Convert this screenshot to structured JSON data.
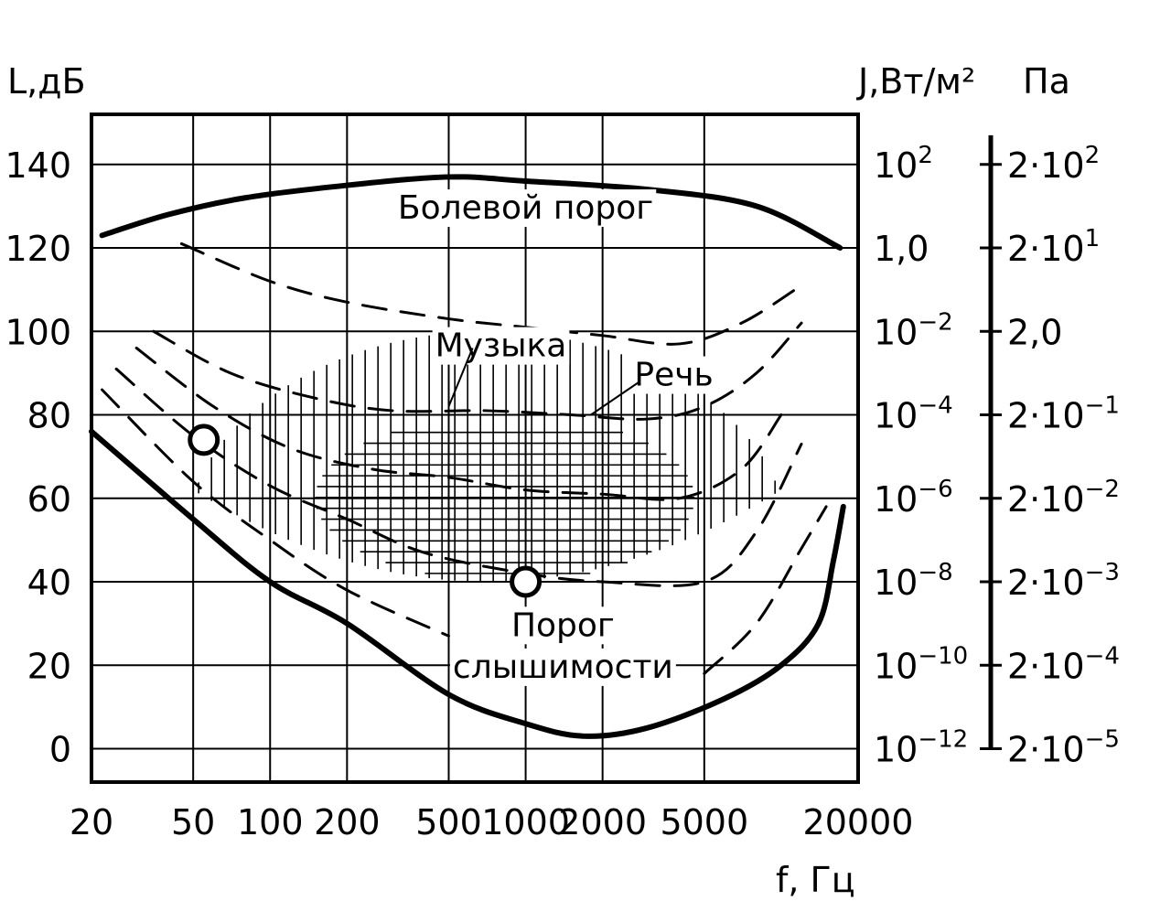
{
  "chart_data": {
    "type": "line",
    "title": "",
    "xlabel": "f, Гц",
    "ylabel": "L,дБ",
    "x_scale": "log",
    "xlim": [
      20,
      20000
    ],
    "ylim": [
      -8,
      152
    ],
    "x_ticks": [
      "20",
      "50",
      "100",
      "200",
      "500",
      "1000",
      "2000",
      "5000",
      "20000"
    ],
    "x_tick_values": [
      20,
      50,
      100,
      200,
      500,
      1000,
      2000,
      5000,
      20000
    ],
    "y_ticks": [
      "0",
      "20",
      "40",
      "60",
      "80",
      "100",
      "120",
      "140"
    ],
    "y_tick_values": [
      0,
      20,
      40,
      60,
      80,
      100,
      120,
      140
    ],
    "right_axis_1": {
      "label": "J,Вт/м²",
      "ticks": [
        {
          "at_db": 0,
          "base": "10",
          "exp": "−12"
        },
        {
          "at_db": 20,
          "base": "10",
          "exp": "−10"
        },
        {
          "at_db": 40,
          "base": "10",
          "exp": "−8"
        },
        {
          "at_db": 60,
          "base": "10",
          "exp": "−6"
        },
        {
          "at_db": 80,
          "base": "10",
          "exp": "−4"
        },
        {
          "at_db": 100,
          "base": "10",
          "exp": "−2"
        },
        {
          "at_db": 120,
          "base": "1,0",
          "exp": ""
        },
        {
          "at_db": 140,
          "base": "10",
          "exp": "2"
        }
      ]
    },
    "right_axis_2": {
      "label": "Па",
      "ticks": [
        {
          "at_db": 0,
          "base": "2·10",
          "exp": "−5"
        },
        {
          "at_db": 20,
          "base": "2·10",
          "exp": "−4"
        },
        {
          "at_db": 40,
          "base": "2·10",
          "exp": "−3"
        },
        {
          "at_db": 60,
          "base": "2·10",
          "exp": "−2"
        },
        {
          "at_db": 80,
          "base": "2·10",
          "exp": "−1"
        },
        {
          "at_db": 100,
          "base": "2,0",
          "exp": ""
        },
        {
          "at_db": 120,
          "base": "2·10",
          "exp": "1"
        },
        {
          "at_db": 140,
          "base": "2·10",
          "exp": "2"
        }
      ]
    },
    "series": [
      {
        "style": "thick",
        "x": [
          22,
          40,
          80,
          200,
          500,
          1000,
          3000,
          8000,
          17000
        ],
        "y": [
          123,
          128,
          132,
          135,
          137,
          136,
          134,
          130,
          120
        ]
      },
      {
        "style": "thick",
        "x": [
          20,
          50,
          100,
          200,
          500,
          1000,
          1700,
          3000,
          6000,
          10000,
          14000,
          16000,
          17500
        ],
        "y": [
          76,
          55,
          40,
          30,
          13,
          6,
          3,
          5,
          12,
          20,
          30,
          45,
          58
        ]
      },
      {
        "style": "dashed",
        "x": [
          45,
          100,
          200,
          500,
          1000,
          2000,
          4000,
          7000,
          12000
        ],
        "y": [
          121,
          112,
          107,
          103,
          101,
          99,
          97,
          102,
          111
        ]
      },
      {
        "style": "dashed",
        "x": [
          35,
          70,
          150,
          300,
          700,
          1500,
          3000,
          5000,
          8000,
          12000
        ],
        "y": [
          100,
          90,
          84,
          81,
          81,
          80,
          79,
          82,
          90,
          102
        ]
      },
      {
        "style": "dashed",
        "x": [
          30,
          60,
          120,
          250,
          500,
          1000,
          2000,
          4000,
          7000,
          10000
        ],
        "y": [
          96,
          82,
          72,
          67,
          65,
          62,
          61,
          60,
          67,
          80
        ]
      },
      {
        "style": "dashed",
        "x": [
          25,
          50,
          100,
          200,
          400,
          1000,
          2000,
          5000,
          8000,
          12000
        ],
        "y": [
          91,
          75,
          63,
          55,
          47,
          42,
          40,
          40,
          52,
          73
        ]
      },
      {
        "style": "dashed",
        "x": [
          22,
          50,
          100,
          200,
          500
        ],
        "y": [
          86,
          64,
          50,
          38,
          27
        ]
      },
      {
        "style": "dashed",
        "x": [
          5000,
          8000,
          12000,
          15000
        ],
        "y": [
          18,
          30,
          48,
          58
        ]
      }
    ],
    "markers": [
      {
        "x": 55,
        "y": 74
      },
      {
        "x": 1000,
        "y": 40
      }
    ],
    "music_region": {
      "x": [
        50,
        10000
      ],
      "y_min": 40,
      "y_max": 100
    },
    "speech_region": {
      "x": [
        150,
        5000
      ],
      "y_min": 40,
      "y_max": 80
    },
    "annotations": [
      {
        "text": "Болевой порог",
        "x": 1000,
        "y": 127
      },
      {
        "text": "Музыка",
        "x": 800,
        "y": 94
      },
      {
        "text": "Речь",
        "x": 3800,
        "y": 87
      },
      {
        "text": "Порог",
        "x": 1400,
        "y": 27
      },
      {
        "text": "слышимости",
        "x": 1400,
        "y": 17
      }
    ]
  }
}
